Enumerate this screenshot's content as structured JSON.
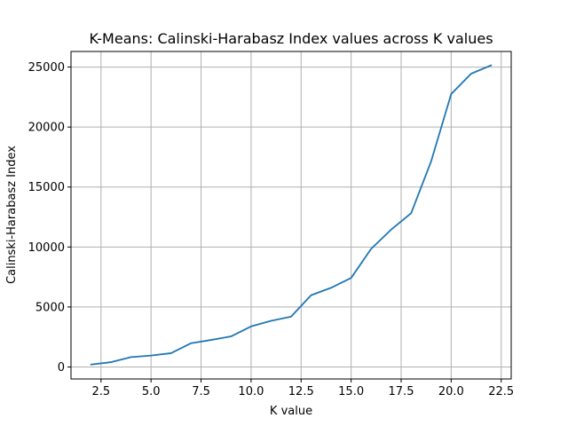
{
  "chart_data": {
    "type": "line",
    "title": "K-Means: Calinski-Harabasz Index values across K values",
    "xlabel": "K value",
    "ylabel": "Calinski-Harabasz Index",
    "xlim": [
      1.0,
      23.0
    ],
    "ylim": [
      -1000,
      26300
    ],
    "xticks": [
      2.5,
      5.0,
      7.5,
      10.0,
      12.5,
      15.0,
      17.5,
      20.0,
      22.5
    ],
    "xtick_labels": [
      "2.5",
      "5.0",
      "7.5",
      "10.0",
      "12.5",
      "15.0",
      "17.5",
      "20.0",
      "22.5"
    ],
    "yticks": [
      0,
      5000,
      10000,
      15000,
      20000,
      25000
    ],
    "ytick_labels": [
      "0",
      "5000",
      "10000",
      "15000",
      "20000",
      "25000"
    ],
    "grid": true,
    "colors": {
      "series": "#1f77b4"
    },
    "series": [
      {
        "x": [
          2,
          3,
          4,
          5,
          6,
          7,
          8,
          9,
          10,
          11,
          12,
          13,
          14,
          15,
          16,
          17,
          18,
          19,
          20,
          21,
          22
        ],
        "y": [
          200,
          400,
          820,
          950,
          1150,
          1980,
          2250,
          2550,
          3380,
          3850,
          4200,
          5980,
          6600,
          7420,
          9850,
          11450,
          12820,
          17150,
          22750,
          24450,
          25150
        ]
      }
    ]
  }
}
